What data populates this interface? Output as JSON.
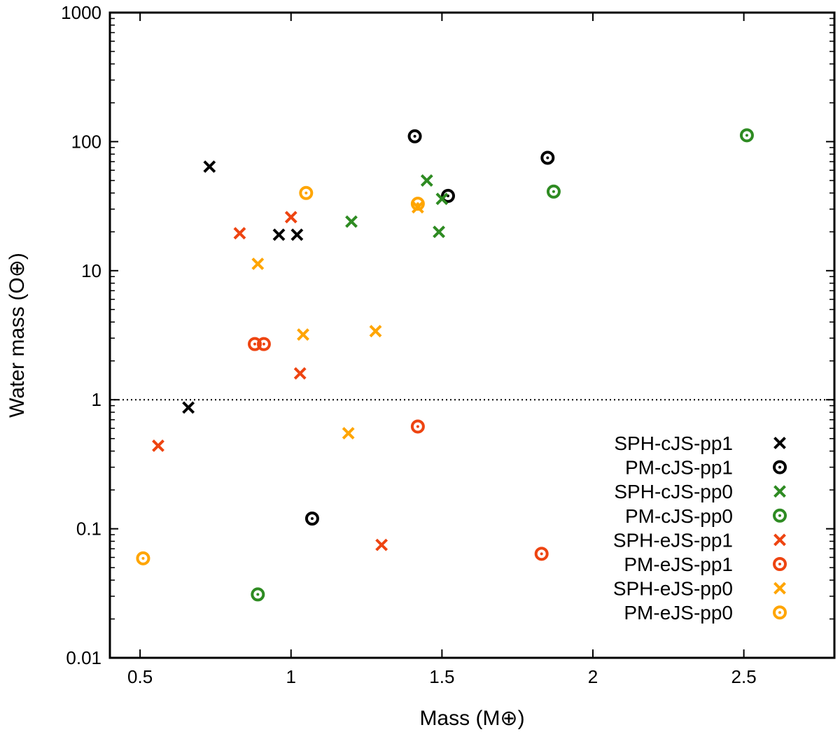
{
  "chart_data": {
    "type": "scatter",
    "title": "",
    "xlabel": "Mass (M⊕)",
    "ylabel": "Water mass (O⊕)",
    "xlim": [
      0.4,
      2.8
    ],
    "ylim": [
      0.01,
      1000
    ],
    "yscale": "log",
    "x_ticks": [
      0.5,
      1,
      1.5,
      2,
      2.5
    ],
    "x_tick_labels": [
      "0.5",
      "1",
      "1.5",
      "2",
      "2.5"
    ],
    "y_ticks": [
      0.01,
      0.1,
      1,
      10,
      100,
      1000
    ],
    "y_tick_labels": [
      "0.01",
      "0.1",
      "1",
      "10",
      "100",
      "1000"
    ],
    "reference_line": {
      "y": 1,
      "style": "dotted"
    },
    "grid": false,
    "legend_position": "bottom-right",
    "series": [
      {
        "name": "SPH-cJS-pp1",
        "marker": "cross",
        "color": "#000000",
        "points": [
          [
            0.73,
            64
          ],
          [
            0.96,
            19
          ],
          [
            1.02,
            19
          ],
          [
            0.66,
            0.87
          ]
        ]
      },
      {
        "name": "PM-cJS-pp1",
        "marker": "ring",
        "color": "#000000",
        "points": [
          [
            1.41,
            110
          ],
          [
            1.52,
            38
          ],
          [
            1.85,
            75
          ],
          [
            1.07,
            0.12
          ]
        ]
      },
      {
        "name": "SPH-cJS-pp0",
        "marker": "cross",
        "color": "#2e8b22",
        "points": [
          [
            1.2,
            24
          ],
          [
            1.45,
            50
          ],
          [
            1.5,
            36
          ],
          [
            1.49,
            20
          ]
        ]
      },
      {
        "name": "PM-cJS-pp0",
        "marker": "ring",
        "color": "#2e8b22",
        "points": [
          [
            2.51,
            112
          ],
          [
            1.87,
            41
          ],
          [
            0.89,
            0.031
          ]
        ]
      },
      {
        "name": "SPH-eJS-pp1",
        "marker": "cross",
        "color": "#ee4411",
        "points": [
          [
            0.83,
            19.5
          ],
          [
            1.0,
            26
          ],
          [
            1.03,
            1.6
          ],
          [
            0.56,
            0.44
          ],
          [
            1.3,
            0.075
          ]
        ]
      },
      {
        "name": "PM-eJS-pp1",
        "marker": "ring",
        "color": "#ee4411",
        "points": [
          [
            0.88,
            2.7
          ],
          [
            0.91,
            2.7
          ],
          [
            1.42,
            0.62
          ],
          [
            1.83,
            0.064
          ]
        ]
      },
      {
        "name": "SPH-eJS-pp0",
        "marker": "cross",
        "color": "#ffa500",
        "points": [
          [
            0.89,
            11.3
          ],
          [
            1.04,
            3.2
          ],
          [
            1.28,
            3.4
          ],
          [
            1.19,
            0.55
          ],
          [
            1.42,
            31
          ]
        ]
      },
      {
        "name": "PM-eJS-pp0",
        "marker": "ring",
        "color": "#ffa500",
        "points": [
          [
            1.05,
            40
          ],
          [
            1.42,
            33
          ],
          [
            0.51,
            0.059
          ]
        ]
      }
    ]
  }
}
